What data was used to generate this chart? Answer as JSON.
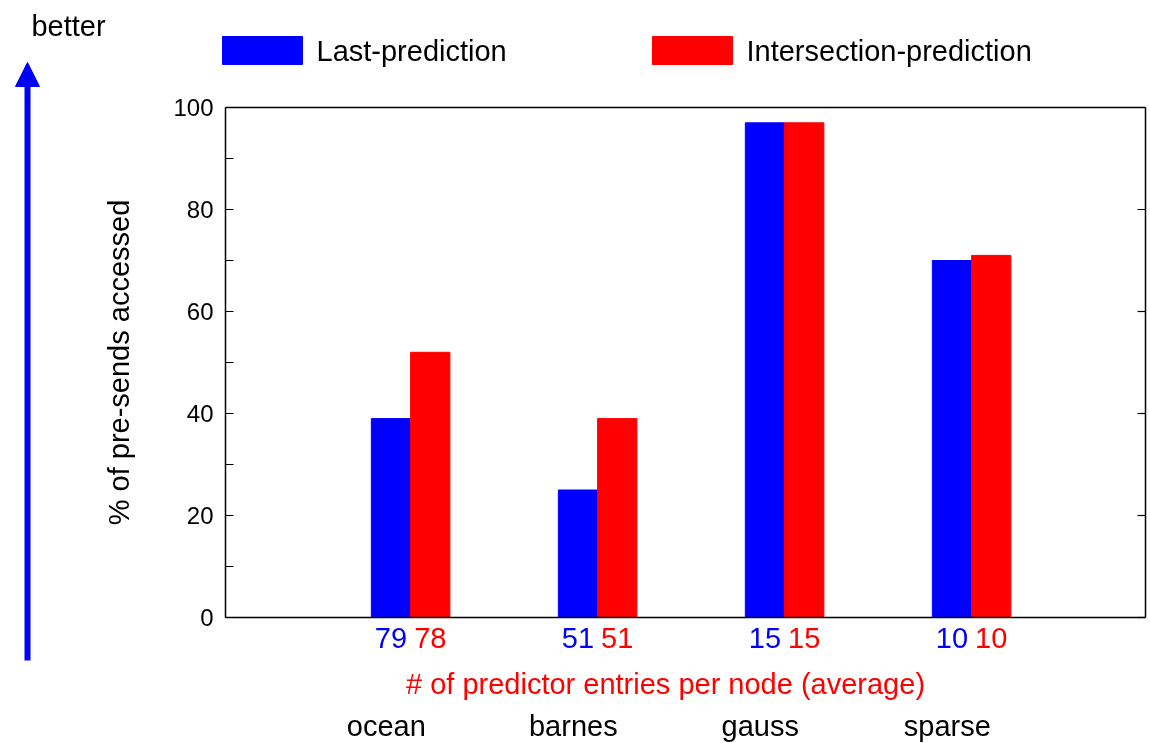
{
  "chart_data": {
    "type": "bar",
    "categories": [
      "ocean",
      "barnes",
      "gauss",
      "sparse"
    ],
    "series": [
      {
        "name": "Last-prediction",
        "color": "#0000ff",
        "values": [
          39,
          25,
          97,
          70
        ]
      },
      {
        "name": "Intersection-prediction",
        "color": "#ff0000",
        "values": [
          52,
          39,
          97,
          71
        ]
      },
      {
        "color": "#000000",
        "values": [
          0,
          0,
          0,
          0
        ]
      }
    ],
    "ylabel": "% of pre-sends accessed",
    "xlabel": "# of predictor entries per node (average)",
    "ylim": [
      0,
      100
    ],
    "yticks": [
      0,
      20,
      40,
      60,
      80,
      100
    ],
    "grid": false,
    "legend": "top",
    "annotations": [
      "better",
      "79",
      "78",
      "51",
      "51",
      "15",
      "15",
      "10",
      "10"
    ]
  }
}
